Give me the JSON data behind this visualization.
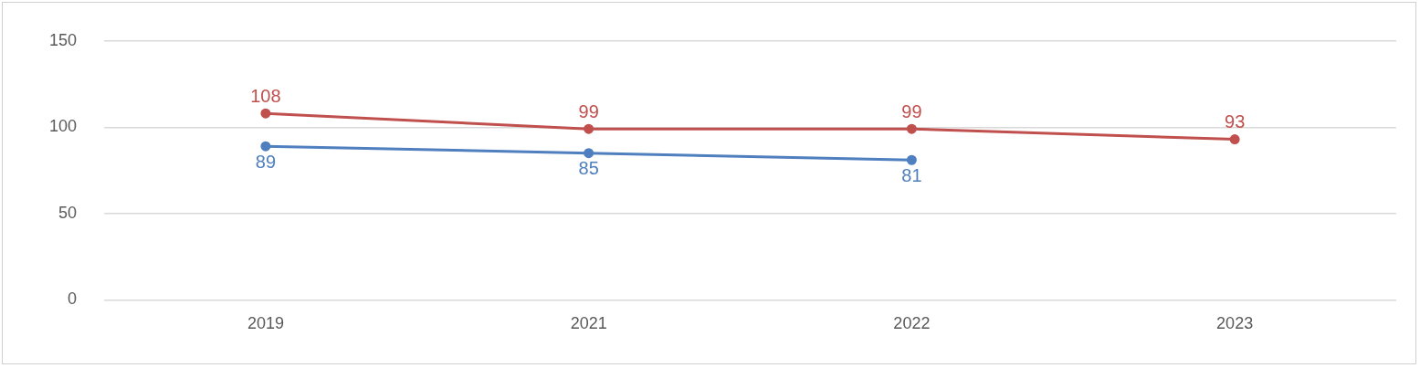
{
  "chart_data": {
    "type": "line",
    "categories": [
      "2019",
      "2021",
      "2022",
      "2023"
    ],
    "series": [
      {
        "color": "#4f7fbf",
        "values": [
          89,
          85,
          81,
          null
        ]
      },
      {
        "color": "#c0504d",
        "values": [
          108,
          99,
          99,
          93
        ]
      }
    ],
    "ylim": [
      0,
      150
    ],
    "yticks": [
      0,
      50,
      100,
      150
    ],
    "grid": "y",
    "legend": false,
    "marker": "circle",
    "line_style": "solid",
    "data_labels": true
  }
}
